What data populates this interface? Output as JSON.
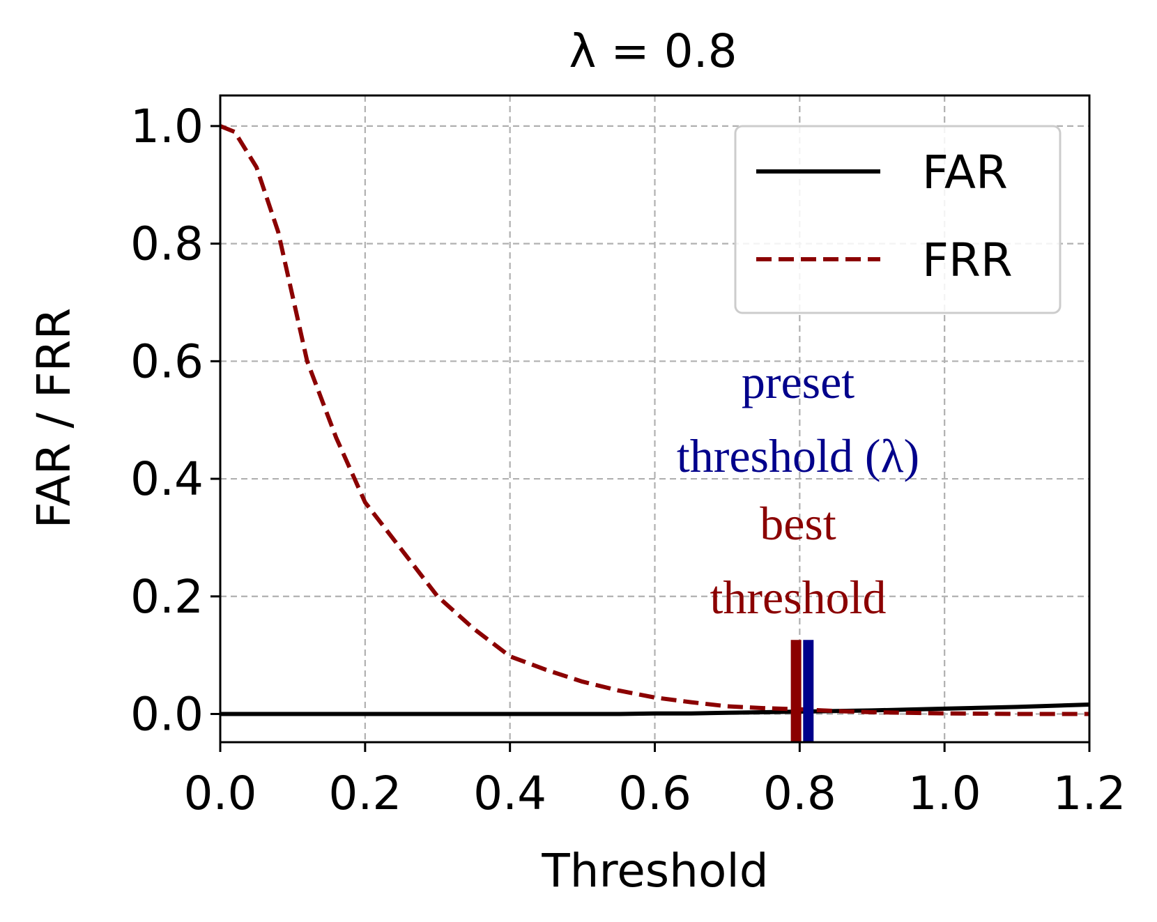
{
  "chart_data": {
    "type": "line",
    "title": "λ = 0.8",
    "xlabel": "Threshold",
    "ylabel": "FAR / FRR",
    "xlim": [
      0.0,
      1.2
    ],
    "ylim": [
      -0.048,
      1.052
    ],
    "grid": true,
    "legend_position": "top-right",
    "x_ticks": [
      "0.0",
      "0.2",
      "0.4",
      "0.6",
      "0.8",
      "1.0",
      "1.2"
    ],
    "y_ticks": [
      "0.0",
      "0.2",
      "0.4",
      "0.6",
      "0.8",
      "1.0"
    ],
    "x": [
      0.0,
      0.02,
      0.05,
      0.08,
      0.12,
      0.16,
      0.2,
      0.25,
      0.3,
      0.35,
      0.4,
      0.45,
      0.5,
      0.55,
      0.6,
      0.65,
      0.7,
      0.75,
      0.8,
      0.85,
      0.9,
      1.0,
      1.1,
      1.2
    ],
    "series": [
      {
        "name": "FAR",
        "style": "solid",
        "color": "#000000",
        "values": [
          0.0,
          0.0,
          0.0,
          0.0,
          0.0,
          0.0,
          0.0,
          0.0,
          0.0,
          0.0,
          0.0,
          0.0,
          0.0,
          0.0,
          0.001,
          0.001,
          0.002,
          0.003,
          0.004,
          0.005,
          0.006,
          0.009,
          0.012,
          0.016
        ]
      },
      {
        "name": "FRR",
        "style": "dashed",
        "color": "#8b0000",
        "values": [
          1.0,
          0.99,
          0.93,
          0.82,
          0.6,
          0.47,
          0.36,
          0.28,
          0.2,
          0.145,
          0.098,
          0.075,
          0.055,
          0.04,
          0.028,
          0.02,
          0.013,
          0.01,
          0.008,
          0.005,
          0.003,
          0.001,
          0.0,
          0.0
        ]
      }
    ],
    "markers": [
      {
        "name": "best threshold",
        "x": 0.795,
        "color": "#8b0000",
        "ymin": -0.048,
        "ymax": 0.126
      },
      {
        "name": "preset threshold (λ)",
        "x": 0.812,
        "color": "#00008b",
        "ymin": -0.048,
        "ymax": 0.126
      }
    ],
    "annotations": {
      "preset_line1": "preset",
      "preset_line2": "threshold (λ)",
      "best_line1": "best",
      "best_line2": "threshold"
    },
    "colors": {
      "grid": "#b0b0b0",
      "preset": "#00008b",
      "best": "#8b0000",
      "far": "#000000",
      "frr": "#8b0000"
    }
  }
}
